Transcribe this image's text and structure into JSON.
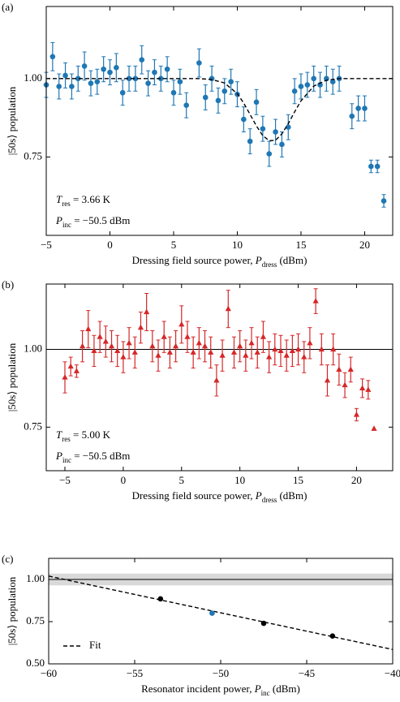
{
  "chart_data": [
    {
      "type": "scatter",
      "panel_label": "(a)",
      "xlabel": [
        {
          "text": "Dressing field source power, "
        },
        {
          "text": "P",
          "italic": true
        },
        {
          "text": "dress",
          "sub": true
        },
        {
          "text": " (dBm)"
        }
      ],
      "ylabel": "|50s⟩ population",
      "xlim": [
        -5,
        22.2
      ],
      "ylim": [
        0.5,
        1.23
      ],
      "xticks": [
        {
          "value": -5,
          "label": "−5"
        },
        0,
        5,
        10,
        15,
        20
      ],
      "yticks": [
        {
          "value": 0.75,
          "label": "0.75"
        },
        {
          "value": 1,
          "label": "1.00"
        }
      ],
      "annotations": [
        [
          {
            "text": "T",
            "italic": true
          },
          {
            "text": "res",
            "sub": true
          },
          {
            "text": " = 3.66 K"
          }
        ],
        [
          {
            "text": "P",
            "italic": true
          },
          {
            "text": "inc",
            "sub": true
          },
          {
            "text": " = −50.5 dBm"
          }
        ]
      ],
      "series": [
        {
          "style": "points",
          "marker": "circle",
          "color": "#1f77b4",
          "x": [
            -5,
            -4.5,
            -4,
            -3.5,
            -3,
            -2.5,
            -2,
            -1.5,
            -1,
            -0.5,
            0,
            0.5,
            1,
            1.5,
            2,
            2.5,
            3,
            3.5,
            4,
            4.5,
            5,
            5.5,
            6,
            7,
            7.5,
            8,
            8.5,
            9,
            9.5,
            10,
            10.5,
            11,
            11.5,
            12,
            12.5,
            13,
            13.5,
            14,
            14.5,
            15,
            15.5,
            16,
            16.5,
            17,
            17.5,
            18,
            19,
            19.5,
            20,
            20.5,
            21,
            21.5
          ],
          "values": [
            0.98,
            1.07,
            0.975,
            1.01,
            0.975,
            1.0,
            1.04,
            0.985,
            0.99,
            1.03,
            1.02,
            1.035,
            0.955,
            1.0,
            1.0,
            1.06,
            0.985,
            1.02,
            1.0,
            1.03,
            0.955,
            0.99,
            0.915,
            1.05,
            0.94,
            1.0,
            0.93,
            0.96,
            0.99,
            0.95,
            0.87,
            0.8,
            0.925,
            0.84,
            0.76,
            0.83,
            0.79,
            0.845,
            0.96,
            0.975,
            0.98,
            1.0,
            0.98,
            1.0,
            0.99,
            1.0,
            0.88,
            0.905,
            0.905,
            0.72,
            0.72,
            0.61
          ],
          "errors": [
            0.04,
            0.045,
            0.04,
            0.04,
            0.04,
            0.04,
            0.045,
            0.04,
            0.04,
            0.04,
            0.04,
            0.045,
            0.04,
            0.04,
            0.04,
            0.045,
            0.04,
            0.04,
            0.04,
            0.04,
            0.04,
            0.04,
            0.04,
            0.045,
            0.04,
            0.04,
            0.04,
            0.04,
            0.04,
            0.04,
            0.04,
            0.04,
            0.04,
            0.04,
            0.04,
            0.04,
            0.04,
            0.04,
            0.04,
            0.04,
            0.04,
            0.04,
            0.04,
            0.04,
            0.04,
            0.04,
            0.04,
            0.04,
            0.04,
            0.02,
            0.02,
            0.02
          ]
        },
        {
          "style": "dashed",
          "color": "#000000",
          "x": [
            -5,
            0,
            5,
            7,
            8,
            9,
            10,
            10.5,
            11,
            11.5,
            12,
            12.5,
            13,
            13.5,
            14,
            14.5,
            15,
            16,
            17,
            18,
            22.2
          ],
          "values": [
            1,
            1,
            1,
            1,
            0.997,
            0.986,
            0.952,
            0.922,
            0.886,
            0.849,
            0.818,
            0.802,
            0.803,
            0.824,
            0.856,
            0.894,
            0.929,
            0.976,
            0.995,
            1,
            1
          ]
        }
      ]
    },
    {
      "type": "scatter",
      "panel_label": "(b)",
      "xlabel": [
        {
          "text": "Dressing field source power, "
        },
        {
          "text": "P",
          "italic": true
        },
        {
          "text": "dress",
          "sub": true
        },
        {
          "text": " (dBm)"
        }
      ],
      "ylabel": "|50s⟩ population",
      "xlim": [
        -6.6,
        23.1
      ],
      "ylim": [
        0.61,
        1.21
      ],
      "hline": 1,
      "xticks": [
        {
          "value": -5,
          "label": "−5"
        },
        0,
        5,
        10,
        15,
        20
      ],
      "yticks": [
        {
          "value": 0.75,
          "label": "0.75"
        },
        {
          "value": 1,
          "label": "1.00"
        }
      ],
      "annotations": [
        [
          {
            "text": "T",
            "italic": true
          },
          {
            "text": "res",
            "sub": true
          },
          {
            "text": " = 5.00 K"
          }
        ],
        [
          {
            "text": "P",
            "italic": true
          },
          {
            "text": "inc",
            "sub": true
          },
          {
            "text": " = −50.5 dBm"
          }
        ]
      ],
      "series": [
        {
          "style": "points",
          "marker": "triangle",
          "color": "#d62728",
          "x": [
            -5,
            -4.5,
            -4,
            -3.5,
            -3,
            -2.5,
            -2,
            -1.5,
            -1,
            -0.5,
            0,
            0.5,
            1,
            1.5,
            2,
            2.5,
            3,
            3.5,
            4,
            4.5,
            5,
            5.5,
            6,
            6.5,
            7,
            7.5,
            8,
            8.5,
            9,
            9.5,
            10,
            10.5,
            11,
            11.5,
            12,
            12.5,
            13,
            13.5,
            14,
            14.5,
            15,
            15.5,
            16,
            16.5,
            17,
            17.5,
            18,
            18.5,
            19,
            19.5,
            20,
            20.5,
            21,
            21.5
          ],
          "values": [
            0.91,
            0.945,
            0.93,
            1.01,
            1.065,
            0.995,
            1.04,
            1.025,
            1.01,
            0.995,
            0.975,
            1.02,
            0.99,
            1.07,
            1.12,
            1.01,
            0.98,
            1.04,
            0.99,
            1.01,
            1.08,
            1.04,
            0.99,
            1.02,
            1.01,
            0.99,
            0.9,
            0.98,
            1.13,
            0.99,
            1.01,
            0.98,
            1.02,
            0.99,
            1.04,
            0.975,
            1.0,
            0.995,
            0.98,
            0.995,
            1.0,
            0.975,
            1.02,
            1.155,
            1.0,
            0.9,
            1.0,
            0.935,
            0.885,
            0.935,
            0.79,
            0.875,
            0.87,
            0.745
          ],
          "errors": [
            0.05,
            0.03,
            0.02,
            0.05,
            0.06,
            0.05,
            0.05,
            0.05,
            0.05,
            0.05,
            0.05,
            0.05,
            0.05,
            0.05,
            0.06,
            0.05,
            0.05,
            0.05,
            0.05,
            0.05,
            0.06,
            0.05,
            0.05,
            0.05,
            0.05,
            0.05,
            0.05,
            0.05,
            0.06,
            0.05,
            0.05,
            0.05,
            0.05,
            0.05,
            0.05,
            0.05,
            0.05,
            0.05,
            0.05,
            0.05,
            0.05,
            0.05,
            0.05,
            0.04,
            0.05,
            0.05,
            0.05,
            0.05,
            0.04,
            0.04,
            0.02,
            0.03,
            0.03,
            null
          ]
        }
      ]
    },
    {
      "type": "scatter",
      "panel_label": "(c)",
      "xlabel": [
        {
          "text": "Resonator incident power, "
        },
        {
          "text": "P",
          "italic": true
        },
        {
          "text": "inc",
          "sub": true
        },
        {
          "text": " (dBm)"
        }
      ],
      "ylabel": "|50s⟩ population",
      "xlim": [
        -60,
        -40
      ],
      "ylim": [
        0.5,
        1.125
      ],
      "hline": 1,
      "band": [
        0.965,
        1.035
      ],
      "band_color": "#d9d9d9",
      "xticks": [
        {
          "value": -60,
          "label": "−60"
        },
        {
          "value": -55,
          "label": "−55"
        },
        {
          "value": -50,
          "label": "−50"
        },
        {
          "value": -45,
          "label": "−45"
        },
        {
          "value": -40,
          "label": "−40"
        }
      ],
      "yticks": [
        {
          "value": 0.5,
          "label": "0.50"
        },
        {
          "value": 0.75,
          "label": "0.75"
        },
        {
          "value": 1,
          "label": "1.00"
        }
      ],
      "legend": "lower left",
      "series": [
        {
          "style": "dashed",
          "name": "Fit",
          "color": "#000000",
          "x": [
            -60,
            -40
          ],
          "values": [
            1.02,
            0.585
          ]
        },
        {
          "style": "points",
          "marker": "circle",
          "color": "#000000",
          "x": [
            -53.5,
            -47.5,
            -43.5
          ],
          "values": [
            0.885,
            0.74,
            0.665
          ]
        },
        {
          "style": "points",
          "marker": "circle",
          "color": "#1f77b4",
          "x": [
            -50.5
          ],
          "values": [
            0.8
          ]
        }
      ]
    }
  ]
}
